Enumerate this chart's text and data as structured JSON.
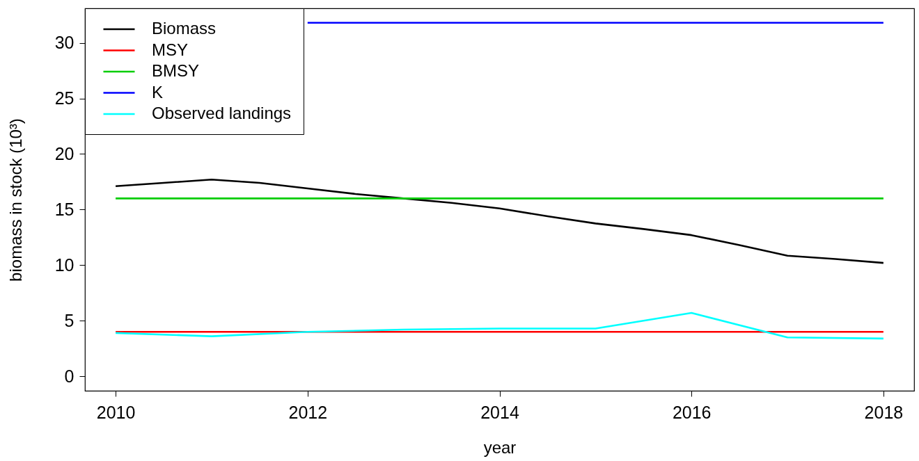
{
  "chart_data": {
    "type": "line",
    "xlabel": "year",
    "ylabel": "biomass in stock (10³)",
    "x": [
      2010,
      2011,
      2012,
      2013,
      2014,
      2015,
      2016,
      2017,
      2018
    ],
    "xlim": [
      2009.68,
      2018.32
    ],
    "xticks": [
      2010,
      2012,
      2014,
      2016,
      2018
    ],
    "ylim": [
      -1.3,
      33.1
    ],
    "yticks": [
      0,
      5,
      10,
      15,
      20,
      25,
      30
    ],
    "grid": false,
    "legend": "top left",
    "series": [
      {
        "name": "Biomass",
        "color": "#000000",
        "x": [
          2010,
          2010.5,
          2011,
          2011.5,
          2012,
          2012.5,
          2013,
          2013.5,
          2014,
          2014.5,
          2015,
          2015.5,
          2016,
          2016.5,
          2017,
          2017.5,
          2018
        ],
        "values": [
          17.1,
          17.4,
          17.7,
          17.4,
          16.9,
          16.4,
          16.0,
          15.6,
          15.1,
          14.4,
          13.75,
          13.25,
          12.7,
          11.8,
          10.85,
          10.55,
          10.2
        ]
      },
      {
        "name": "MSY",
        "color": "#ff0000",
        "values": [
          4.0,
          4.0,
          4.0,
          4.0,
          4.0,
          4.0,
          4.0,
          4.0,
          4.0
        ]
      },
      {
        "name": "BMSY",
        "color": "#00cd00",
        "values": [
          16.0,
          16.0,
          16.0,
          16.0,
          16.0,
          16.0,
          16.0,
          16.0,
          16.0
        ]
      },
      {
        "name": "K",
        "color": "#0000ff",
        "values": [
          null,
          null,
          31.8,
          31.8,
          31.8,
          31.8,
          31.8,
          31.8,
          31.8
        ]
      },
      {
        "name": "Observed landings",
        "color": "#00ffff",
        "values": [
          3.9,
          3.6,
          4.0,
          4.2,
          4.3,
          4.3,
          5.7,
          3.5,
          3.4
        ]
      }
    ]
  }
}
